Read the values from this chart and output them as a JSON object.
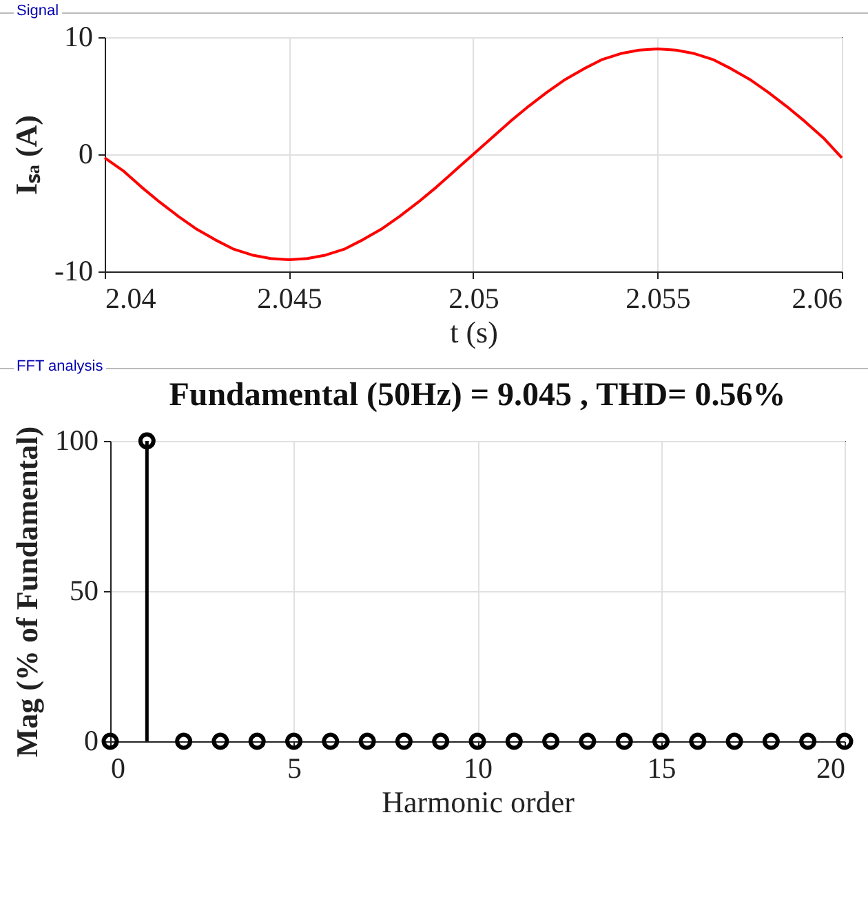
{
  "chart_data": [
    {
      "type": "line",
      "annotations": [
        "Signal"
      ],
      "xlabel": "t (s)",
      "ylabel": "Iₛₐ (A)",
      "x": [
        2.04,
        2.0405,
        2.041,
        2.0415,
        2.042,
        2.0425,
        2.043,
        2.0435,
        2.044,
        2.0445,
        2.045,
        2.0455,
        2.046,
        2.0465,
        2.047,
        2.0475,
        2.048,
        2.0485,
        2.049,
        2.0495,
        2.05,
        2.0505,
        2.051,
        2.0515,
        2.052,
        2.0525,
        2.053,
        2.0535,
        2.054,
        2.0545,
        2.055,
        2.0555,
        2.056,
        2.0565,
        2.057,
        2.0575,
        2.058,
        2.0585,
        2.059,
        2.0595,
        2.06
      ],
      "series": [
        {
          "color": "#ff0000",
          "values": [
            -0.3,
            -1.4,
            -2.8,
            -4.1,
            -5.3,
            -6.4,
            -7.3,
            -8.1,
            -8.6,
            -8.9,
            -9.0,
            -8.9,
            -8.6,
            -8.1,
            -7.3,
            -6.4,
            -5.3,
            -4.1,
            -2.8,
            -1.4,
            0,
            1.4,
            2.8,
            4.1,
            5.3,
            6.4,
            7.3,
            8.1,
            8.6,
            8.9,
            9.0,
            8.9,
            8.6,
            8.1,
            7.3,
            6.4,
            5.3,
            4.1,
            2.8,
            1.4,
            -0.3
          ]
        }
      ],
      "xlim": [
        2.04,
        2.06
      ],
      "xticks": [
        2.04,
        2.045,
        2.05,
        2.055,
        2.06
      ],
      "ylim": [
        -10,
        10
      ],
      "yticks": [
        -10,
        0,
        10
      ],
      "grid": true
    },
    {
      "type": "lollipop",
      "annotations": [
        "FFT analysis"
      ],
      "title": "Fundamental (50Hz) = 9.045 , THD= 0.56%",
      "xlabel": "Harmonic order",
      "ylabel": "Mag (% of Fundamental)",
      "x": [
        0,
        1,
        2,
        3,
        4,
        5,
        6,
        7,
        8,
        9,
        10,
        11,
        12,
        13,
        14,
        15,
        16,
        17,
        18,
        19,
        20
      ],
      "series": [
        {
          "color": "#000000",
          "values": [
            0,
            100,
            0,
            0,
            0,
            0,
            0,
            0,
            0,
            0,
            0,
            0,
            0,
            0,
            0,
            0,
            0,
            0,
            0,
            0,
            0
          ]
        }
      ],
      "xlim": [
        0,
        20
      ],
      "xticks": [
        0,
        5,
        10,
        15,
        20
      ],
      "ylim": [
        0,
        100
      ],
      "yticks": [
        0,
        50,
        100
      ],
      "grid": true,
      "marker": "circle"
    }
  ]
}
